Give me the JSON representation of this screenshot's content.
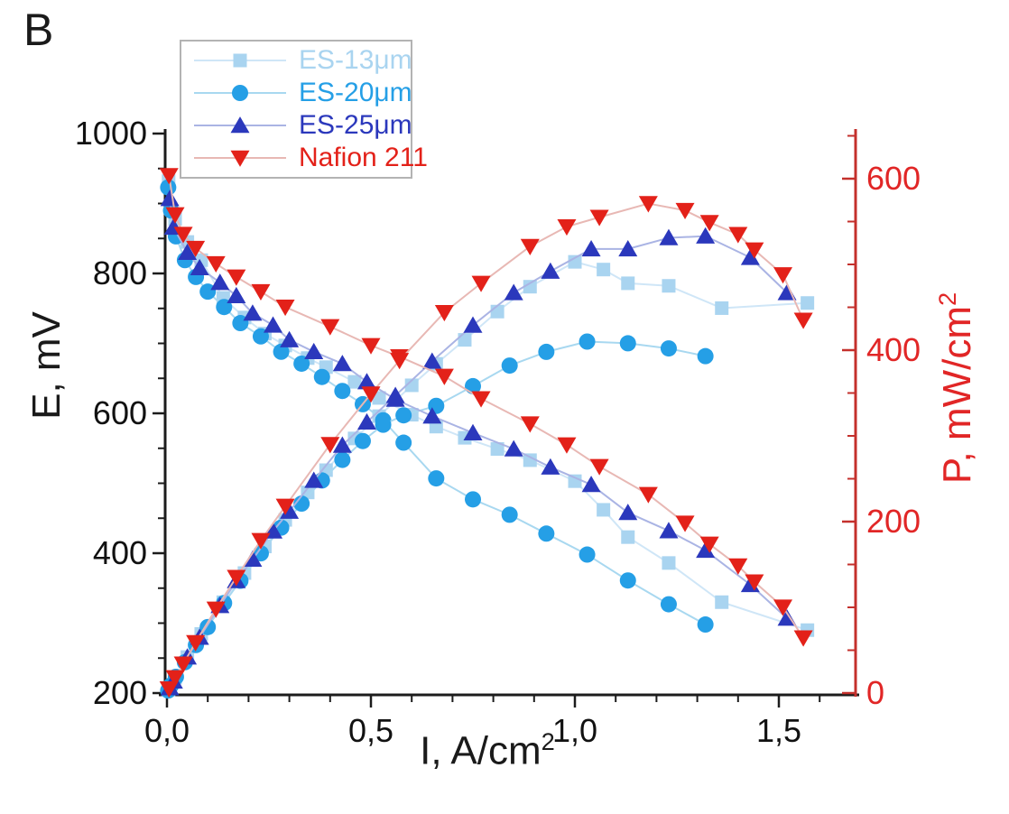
{
  "figure": {
    "panel_label": "B",
    "background": "#ffffff"
  },
  "axes": {
    "x": {
      "label_main": "I, A/cm",
      "label_sup": "2",
      "min": 0.0,
      "max": 1.69,
      "major_ticks": [
        {
          "value": 0.0,
          "label": "0,0"
        },
        {
          "value": 0.5,
          "label": "0,5"
        },
        {
          "value": 1.0,
          "label": "1,0"
        },
        {
          "value": 1.5,
          "label": "1,5"
        }
      ],
      "minor_step": 0.1,
      "line_color": "#1c1c1c",
      "text_color": "#111111"
    },
    "y_left": {
      "label": "E, mV",
      "min": 200,
      "max": 1000,
      "major_ticks": [
        {
          "value": 200,
          "label": "200"
        },
        {
          "value": 400,
          "label": "400"
        },
        {
          "value": 600,
          "label": "600"
        },
        {
          "value": 800,
          "label": "800"
        },
        {
          "value": 1000,
          "label": "1000"
        }
      ],
      "minor_step": 50,
      "line_color": "#1c1c1c",
      "text_color": "#111111"
    },
    "y_right": {
      "label_main": "P, mW/cm",
      "label_sup": "2",
      "min": 0,
      "max": 652,
      "major_ticks": [
        {
          "value": 0,
          "label": "0"
        },
        {
          "value": 200,
          "label": "200"
        },
        {
          "value": 400,
          "label": "400"
        },
        {
          "value": 600,
          "label": "600"
        }
      ],
      "minor_step": 50,
      "line_color": "#c4302c",
      "text_color": "#e12626"
    }
  },
  "legend": {
    "border_color": "#b3b3b3"
  },
  "chart_data": {
    "type": "line",
    "title": "",
    "xlabel": "I, A/cm2",
    "ylabel_left": "E, mV",
    "ylabel_right": "P, mW/cm2",
    "xlim": [
      0.0,
      1.69
    ],
    "ylim_left": [
      200,
      1000
    ],
    "ylim_right": [
      0,
      652
    ],
    "grid": false,
    "legend_position": "top-left",
    "series": [
      {
        "name": "ES-13μm",
        "marker": "square",
        "color": "#a9d4f0",
        "line_color": "#cfe6f7",
        "I_A_cm2": [
          0.004,
          0.02,
          0.05,
          0.084,
          0.138,
          0.19,
          0.24,
          0.29,
          0.345,
          0.39,
          0.46,
          0.52,
          0.6,
          0.66,
          0.73,
          0.81,
          0.89,
          1.0,
          1.07,
          1.13,
          1.23,
          1.36,
          1.57
        ],
        "E_mV": [
          932,
          878,
          845,
          819,
          765,
          737,
          714,
          697,
          679,
          666,
          645,
          622,
          598,
          581,
          565,
          549,
          533,
          503,
          462,
          423,
          386,
          330,
          290
        ],
        "P_mW_cm2": [
          4,
          18,
          42,
          69,
          106,
          140,
          171,
          202,
          234,
          260,
          297,
          323,
          359,
          384,
          412,
          445,
          474,
          503,
          494,
          478,
          475,
          449,
          455
        ]
      },
      {
        "name": "ES-20μm",
        "marker": "circle",
        "color": "#259fe6",
        "line_color": "#a8d8f0",
        "I_A_cm2": [
          0.003,
          0.01,
          0.022,
          0.044,
          0.071,
          0.1,
          0.14,
          0.18,
          0.23,
          0.28,
          0.33,
          0.38,
          0.43,
          0.48,
          0.53,
          0.58,
          0.66,
          0.75,
          0.84,
          0.93,
          1.03,
          1.13,
          1.23,
          1.32
        ],
        "E_mV": [
          923,
          890,
          853,
          819,
          795,
          774,
          752,
          729,
          710,
          688,
          671,
          652,
          632,
          613,
          590,
          558,
          507,
          477,
          455,
          428,
          398,
          361,
          327,
          298
        ],
        "P_mW_cm2": [
          3,
          9,
          19,
          36,
          56,
          77,
          105,
          131,
          163,
          193,
          221,
          248,
          272,
          294,
          313,
          324,
          335,
          358,
          382,
          398,
          410,
          408,
          402,
          393
        ]
      },
      {
        "name": "ES-25μm",
        "marker": "triangle-up",
        "color": "#2b38bc",
        "line_color": "#aab4e4",
        "I_A_cm2": [
          0.007,
          0.016,
          0.05,
          0.08,
          0.13,
          0.17,
          0.21,
          0.26,
          0.3,
          0.36,
          0.43,
          0.49,
          0.56,
          0.65,
          0.75,
          0.85,
          0.94,
          1.04,
          1.13,
          1.23,
          1.32,
          1.43,
          1.52
        ],
        "E_mV": [
          907,
          866,
          830,
          808,
          787,
          768,
          743,
          726,
          705,
          688,
          671,
          645,
          620,
          596,
          572,
          549,
          523,
          498,
          458,
          432,
          404,
          355,
          307
        ],
        "P_mW_cm2": [
          6,
          14,
          42,
          65,
          102,
          131,
          156,
          189,
          212,
          248,
          289,
          316,
          347,
          387,
          429,
          467,
          492,
          518,
          518,
          531,
          533,
          508,
          467
        ]
      },
      {
        "name": "Nafion 211",
        "marker": "triangle-down",
        "color": "#e32119",
        "line_color": "#e8b8b4",
        "I_A_cm2": [
          0.005,
          0.02,
          0.04,
          0.07,
          0.12,
          0.17,
          0.23,
          0.29,
          0.4,
          0.5,
          0.57,
          0.68,
          0.77,
          0.89,
          0.98,
          1.06,
          1.18,
          1.27,
          1.33,
          1.4,
          1.44,
          1.51,
          1.56
        ],
        "E_mV": [
          940,
          884,
          856,
          836,
          814,
          795,
          774,
          752,
          724,
          697,
          681,
          653,
          621,
          585,
          555,
          524,
          484,
          443,
          413,
          382,
          359,
          323,
          279
        ],
        "P_mW_cm2": [
          5,
          18,
          34,
          59,
          98,
          135,
          178,
          218,
          290,
          349,
          388,
          444,
          478,
          521,
          544,
          555,
          571,
          563,
          549,
          535,
          517,
          488,
          435
        ]
      }
    ]
  }
}
